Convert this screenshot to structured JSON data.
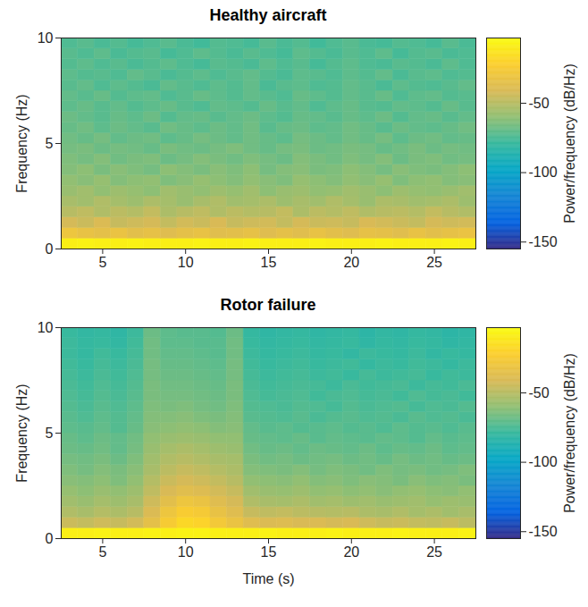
{
  "chart_data": [
    {
      "type": "heatmap",
      "title": "Healthy aircraft",
      "ylabel": "Frequency (Hz)",
      "xlim": [
        2.5,
        27.5
      ],
      "xticks": [
        5,
        10,
        15,
        20,
        25
      ],
      "ylim": [
        0,
        10
      ],
      "yticks": [
        0,
        5,
        10
      ],
      "x": [
        3,
        4,
        5,
        6,
        7,
        8,
        9,
        10,
        11,
        12,
        13,
        14,
        15,
        16,
        17,
        18,
        19,
        20,
        21,
        22,
        23,
        24,
        25,
        26,
        27
      ],
      "y": [
        0.25,
        0.75,
        1.25,
        1.75,
        2.25,
        2.75,
        3.25,
        3.75,
        4.25,
        4.75,
        5.25,
        5.75,
        6.25,
        6.75,
        7.25,
        7.75,
        8.25,
        8.75,
        9.25,
        9.75
      ],
      "cells": [
        [
          -8,
          -7,
          -8,
          -8,
          -7,
          -8,
          -8,
          -8,
          -7,
          -8,
          -8,
          -7,
          -8,
          -8,
          -8,
          -7,
          -8,
          -8,
          -8,
          -7,
          -8,
          -8,
          -8,
          -7,
          -8
        ],
        [
          -30,
          -33,
          -35,
          -32,
          -36,
          -34,
          -38,
          -35,
          -33,
          -37,
          -36,
          -34,
          -38,
          -35,
          -37,
          -33,
          -36,
          -38,
          -34,
          -35,
          -37,
          -33,
          -36,
          -34,
          -32
        ],
        [
          -42,
          -45,
          -40,
          -46,
          -44,
          -42,
          -47,
          -43,
          -45,
          -41,
          -46,
          -44,
          -43,
          -47,
          -42,
          -45,
          -44,
          -46,
          -41,
          -43,
          -45,
          -47,
          -42,
          -44,
          -43
        ],
        [
          -50,
          -48,
          -52,
          -49,
          -51,
          -47,
          -53,
          -50,
          -48,
          -52,
          -49,
          -51,
          -50,
          -47,
          -53,
          -49,
          -51,
          -48,
          -52,
          -50,
          -49,
          -51,
          -47,
          -50,
          -52
        ],
        [
          -54,
          -56,
          -52,
          -55,
          -57,
          -53,
          -55,
          -58,
          -54,
          -52,
          -56,
          -55,
          -53,
          -57,
          -54,
          -56,
          -52,
          -55,
          -58,
          -53,
          -54,
          -56,
          -55,
          -53,
          -57
        ],
        [
          -58,
          -56,
          -60,
          -57,
          -59,
          -61,
          -56,
          -58,
          -60,
          -57,
          -59,
          -56,
          -61,
          -58,
          -57,
          -60,
          -59,
          -56,
          -58,
          -61,
          -57,
          -59,
          -60,
          -58,
          -56
        ],
        [
          -60,
          -62,
          -59,
          -63,
          -61,
          -60,
          -64,
          -62,
          -59,
          -61,
          -63,
          -60,
          -62,
          -64,
          -59,
          -61,
          -63,
          -60,
          -62,
          -59,
          -64,
          -61,
          -60,
          -63,
          -62
        ],
        [
          -63,
          -61,
          -65,
          -62,
          -64,
          -66,
          -61,
          -63,
          -65,
          -62,
          -64,
          -61,
          -66,
          -63,
          -62,
          -65,
          -64,
          -61,
          -63,
          -66,
          -62,
          -64,
          -65,
          -63,
          -61
        ],
        [
          -64,
          -66,
          -63,
          -67,
          -65,
          -64,
          -68,
          -66,
          -63,
          -65,
          -67,
          -64,
          -66,
          -68,
          -63,
          -65,
          -67,
          -64,
          -66,
          -63,
          -68,
          -65,
          -64,
          -67,
          -66
        ],
        [
          -66,
          -65,
          -68,
          -66,
          -67,
          -69,
          -65,
          -67,
          -68,
          -66,
          -64,
          -67,
          -69,
          -66,
          -65,
          -68,
          -67,
          -65,
          -66,
          -69,
          -67,
          -65,
          -68,
          -66,
          -67
        ],
        [
          -67,
          -69,
          -66,
          -70,
          -68,
          -67,
          -71,
          -69,
          -66,
          -68,
          -70,
          -67,
          -69,
          -71,
          -66,
          -68,
          -70,
          -67,
          -69,
          -66,
          -71,
          -68,
          -67,
          -70,
          -69
        ],
        [
          -69,
          -67,
          -71,
          -68,
          -70,
          -72,
          -67,
          -69,
          -71,
          -68,
          -70,
          -67,
          -72,
          -69,
          -68,
          -71,
          -70,
          -67,
          -69,
          -72,
          -68,
          -70,
          -71,
          -69,
          -67
        ],
        [
          -68,
          -70,
          -72,
          -69,
          -71,
          -68,
          -73,
          -70,
          -69,
          -72,
          -70,
          -68,
          -71,
          -73,
          -69,
          -70,
          -72,
          -69,
          -71,
          -68,
          -73,
          -70,
          -69,
          -72,
          -70
        ],
        [
          -71,
          -69,
          -72,
          -70,
          -73,
          -71,
          -69,
          -72,
          -74,
          -70,
          -71,
          -73,
          -69,
          -72,
          -70,
          -74,
          -71,
          -69,
          -72,
          -73,
          -70,
          -71,
          -73,
          -69,
          -72
        ],
        [
          -70,
          -72,
          -69,
          -73,
          -71,
          -70,
          -74,
          -72,
          -69,
          -71,
          -73,
          -70,
          -72,
          -74,
          -69,
          -71,
          -73,
          -70,
          -72,
          -69,
          -74,
          -71,
          -70,
          -73,
          -72
        ],
        [
          -72,
          -70,
          -74,
          -71,
          -73,
          -75,
          -70,
          -72,
          -74,
          -71,
          -73,
          -70,
          -75,
          -72,
          -71,
          -74,
          -73,
          -70,
          -72,
          -75,
          -71,
          -73,
          -74,
          -72,
          -70
        ],
        [
          -71,
          -73,
          -72,
          -74,
          -70,
          -72,
          -75,
          -73,
          -71,
          -74,
          -72,
          -70,
          -73,
          -75,
          -71,
          -72,
          -74,
          -71,
          -73,
          -70,
          -75,
          -72,
          -71,
          -74,
          -73
        ],
        [
          -73,
          -71,
          -74,
          -72,
          -75,
          -73,
          -71,
          -74,
          -76,
          -72,
          -73,
          -75,
          -71,
          -74,
          -72,
          -76,
          -73,
          -71,
          -74,
          -75,
          -72,
          -73,
          -75,
          -71,
          -74
        ],
        [
          -72,
          -74,
          -71,
          -75,
          -73,
          -72,
          -76,
          -74,
          -71,
          -73,
          -75,
          -72,
          -74,
          -76,
          -71,
          -73,
          -75,
          -72,
          -74,
          -71,
          -76,
          -73,
          -72,
          -75,
          -74
        ],
        [
          -74,
          -72,
          -75,
          -73,
          -76,
          -74,
          -72,
          -75,
          -77,
          -73,
          -74,
          -76,
          -72,
          -75,
          -73,
          -77,
          -74,
          -72,
          -75,
          -76,
          -73,
          -74,
          -76,
          -72,
          -75
        ]
      ],
      "colorbar": {
        "label": "Power/frequency (dB/Hz)",
        "lim": [
          -155,
          -3
        ],
        "ticks": [
          -150,
          -100,
          -50
        ]
      }
    },
    {
      "type": "heatmap",
      "title": "Rotor failure",
      "xlabel": "Time (s)",
      "ylabel": "Frequency (Hz)",
      "xlim": [
        2.5,
        27.5
      ],
      "xticks": [
        5,
        10,
        15,
        20,
        25
      ],
      "ylim": [
        0,
        10
      ],
      "yticks": [
        0,
        5,
        10
      ],
      "x": [
        3,
        4,
        5,
        6,
        7,
        8,
        9,
        10,
        11,
        12,
        13,
        14,
        15,
        16,
        17,
        18,
        19,
        20,
        21,
        22,
        23,
        24,
        25,
        26,
        27
      ],
      "y": [
        0.25,
        0.75,
        1.25,
        1.75,
        2.25,
        2.75,
        3.25,
        3.75,
        4.25,
        4.75,
        5.25,
        5.75,
        6.25,
        6.75,
        7.25,
        7.75,
        8.25,
        8.75,
        9.25,
        9.75
      ],
      "cells": [
        [
          -8,
          -8,
          -7,
          -8,
          -8,
          -7,
          -8,
          -7,
          -7,
          -8,
          -8,
          -8,
          -7,
          -8,
          -8,
          -8,
          -7,
          -8,
          -8,
          -8,
          -7,
          -8,
          -8,
          -8,
          -7
        ],
        [
          -45,
          -47,
          -44,
          -46,
          -43,
          -35,
          -25,
          -18,
          -20,
          -27,
          -32,
          -38,
          -40,
          -39,
          -41,
          -40,
          -42,
          -41,
          -44,
          -46,
          -45,
          -47,
          -48,
          -46,
          -49
        ],
        [
          -52,
          -54,
          -51,
          -53,
          -50,
          -40,
          -30,
          -24,
          -26,
          -33,
          -38,
          -46,
          -48,
          -47,
          -49,
          -50,
          -51,
          -50,
          -53,
          -54,
          -52,
          -55,
          -53,
          -56,
          -54
        ],
        [
          -56,
          -58,
          -55,
          -57,
          -54,
          -44,
          -36,
          -30,
          -32,
          -38,
          -42,
          -52,
          -54,
          -55,
          -53,
          -56,
          -55,
          -57,
          -56,
          -58,
          -57,
          -56,
          -59,
          -57,
          -58
        ],
        [
          -59,
          -61,
          -58,
          -60,
          -57,
          -48,
          -41,
          -37,
          -39,
          -43,
          -46,
          -56,
          -58,
          -59,
          -57,
          -60,
          -59,
          -61,
          -60,
          -62,
          -60,
          -59,
          -61,
          -62,
          -60
        ],
        [
          -62,
          -63,
          -61,
          -64,
          -60,
          -51,
          -45,
          -42,
          -44,
          -47,
          -50,
          -60,
          -61,
          -62,
          -60,
          -63,
          -62,
          -64,
          -62,
          -63,
          -65,
          -62,
          -64,
          -63,
          -65
        ],
        [
          -64,
          -66,
          -63,
          -65,
          -62,
          -54,
          -49,
          -46,
          -48,
          -51,
          -53,
          -63,
          -64,
          -65,
          -63,
          -66,
          -64,
          -65,
          -67,
          -64,
          -66,
          -65,
          -67,
          -66,
          -64
        ],
        [
          -66,
          -67,
          -65,
          -68,
          -64,
          -56,
          -52,
          -50,
          -52,
          -54,
          -55,
          -65,
          -67,
          -66,
          -68,
          -67,
          -66,
          -68,
          -67,
          -69,
          -66,
          -68,
          -67,
          -69,
          -68
        ],
        [
          -68,
          -69,
          -67,
          -70,
          -66,
          -58,
          -55,
          -53,
          -55,
          -57,
          -58,
          -67,
          -69,
          -68,
          -70,
          -68,
          -69,
          -70,
          -68,
          -71,
          -69,
          -70,
          -68,
          -71,
          -70
        ],
        [
          -69,
          -71,
          -68,
          -70,
          -67,
          -60,
          -58,
          -57,
          -58,
          -60,
          -60,
          -69,
          -70,
          -71,
          -69,
          -72,
          -70,
          -71,
          -72,
          -70,
          -71,
          -73,
          -70,
          -72,
          -71
        ],
        [
          -71,
          -72,
          -70,
          -73,
          -69,
          -62,
          -61,
          -60,
          -61,
          -63,
          -62,
          -70,
          -72,
          -71,
          -73,
          -72,
          -71,
          -73,
          -72,
          -74,
          -71,
          -73,
          -72,
          -74,
          -72
        ],
        [
          -72,
          -74,
          -71,
          -73,
          -70,
          -63,
          -63,
          -62,
          -64,
          -65,
          -63,
          -72,
          -73,
          -74,
          -72,
          -75,
          -73,
          -72,
          -74,
          -73,
          -75,
          -72,
          -74,
          -73,
          -75
        ],
        [
          -73,
          -75,
          -72,
          -74,
          -71,
          -64,
          -65,
          -64,
          -66,
          -67,
          -64,
          -73,
          -74,
          -75,
          -73,
          -74,
          -76,
          -73,
          -75,
          -74,
          -73,
          -76,
          -74,
          -75,
          -73
        ],
        [
          -74,
          -76,
          -73,
          -75,
          -72,
          -65,
          -66,
          -66,
          -67,
          -68,
          -65,
          -74,
          -76,
          -75,
          -74,
          -77,
          -75,
          -74,
          -76,
          -75,
          -77,
          -74,
          -76,
          -75,
          -77
        ],
        [
          -75,
          -77,
          -74,
          -76,
          -73,
          -65,
          -67,
          -67,
          -68,
          -69,
          -65,
          -75,
          -77,
          -76,
          -75,
          -76,
          -78,
          -75,
          -77,
          -76,
          -75,
          -78,
          -76,
          -77,
          -75
        ],
        [
          -76,
          -78,
          -75,
          -77,
          -74,
          -66,
          -68,
          -68,
          -69,
          -70,
          -66,
          -76,
          -78,
          -77,
          -76,
          -78,
          -77,
          -79,
          -76,
          -78,
          -77,
          -76,
          -79,
          -77,
          -78
        ],
        [
          -77,
          -79,
          -76,
          -78,
          -75,
          -66,
          -69,
          -69,
          -70,
          -71,
          -66,
          -77,
          -79,
          -78,
          -77,
          -79,
          -78,
          -77,
          -80,
          -78,
          -79,
          -77,
          -78,
          -80,
          -78
        ],
        [
          -78,
          -80,
          -77,
          -79,
          -76,
          -67,
          -70,
          -70,
          -71,
          -72,
          -67,
          -78,
          -80,
          -79,
          -78,
          -80,
          -79,
          -81,
          -78,
          -79,
          -80,
          -78,
          -81,
          -79,
          -80
        ],
        [
          -78,
          -80,
          -79,
          -81,
          -77,
          -67,
          -71,
          -71,
          -72,
          -72,
          -67,
          -79,
          -81,
          -80,
          -79,
          -81,
          -80,
          -79,
          -82,
          -80,
          -81,
          -79,
          -80,
          -82,
          -81
        ],
        [
          -79,
          -81,
          -80,
          -82,
          -78,
          -68,
          -71,
          -72,
          -72,
          -73,
          -68,
          -80,
          -82,
          -81,
          -80,
          -82,
          -81,
          -80,
          -83,
          -81,
          -82,
          -80,
          -81,
          -83,
          -82
        ]
      ],
      "colorbar": {
        "label": "Power/frequency (dB/Hz)",
        "lim": [
          -155,
          -3
        ],
        "ticks": [
          -150,
          -100,
          -50
        ]
      }
    }
  ]
}
